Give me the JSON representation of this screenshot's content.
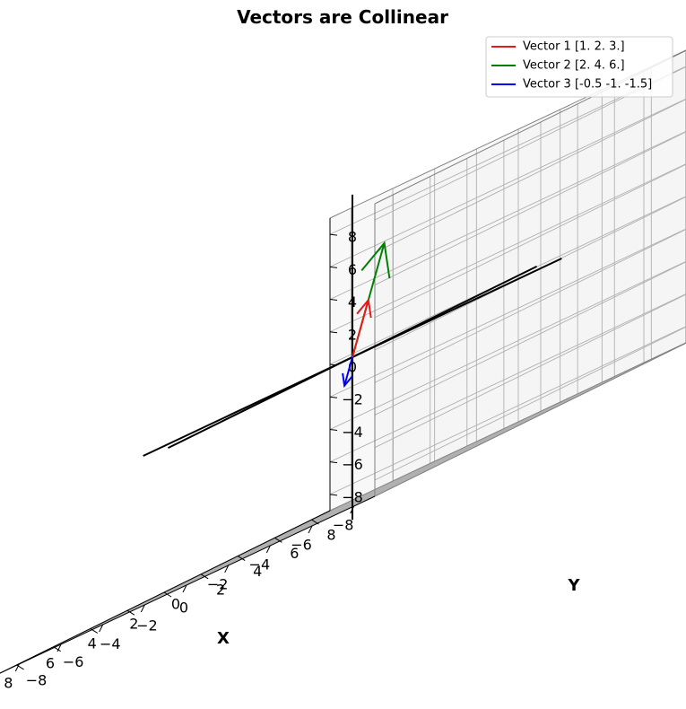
{
  "chart_data": {
    "type": "line",
    "projection": "3d",
    "title": "Vectors are Collinear",
    "xlabel": "X",
    "ylabel": "Y",
    "zlabel": "",
    "xlim": [
      -9,
      9
    ],
    "ylim": [
      -9,
      9
    ],
    "zlim": [
      -9,
      9
    ],
    "xticks": [
      -8,
      -6,
      -4,
      -2,
      0,
      2,
      4,
      6,
      8
    ],
    "yticks": [
      -8,
      -6,
      -4,
      -2,
      0,
      2,
      4,
      6,
      8
    ],
    "zticks": [
      -8,
      -6,
      -4,
      -2,
      0,
      2,
      4,
      6,
      8
    ],
    "xtick_labels": [
      "−8",
      "−6",
      "−4",
      "−2",
      "0",
      "2",
      "4",
      "6",
      "8"
    ],
    "ytick_labels": [
      "−8",
      "−6",
      "−4",
      "−2",
      "0",
      "2",
      "4",
      "6",
      "8"
    ],
    "ztick_labels": [
      "−8",
      "−6",
      "−4",
      "−2",
      "0",
      "2",
      "4",
      "6",
      "8"
    ],
    "grid": true,
    "legend_position": "top-right",
    "series": [
      {
        "name": "Vector 1 [1. 2. 3.]",
        "color": "#e41a1c",
        "start": [
          0,
          0,
          0
        ],
        "end": [
          1,
          2,
          3
        ]
      },
      {
        "name": "Vector 2 [2. 4. 6.]",
        "color": "#008000",
        "start": [
          0,
          0,
          0
        ],
        "end": [
          2,
          4,
          6
        ]
      },
      {
        "name": "Vector 3 [-0.5 -1.  -1.5]",
        "color": "#0000ff",
        "start": [
          0,
          0,
          0
        ],
        "end": [
          -0.5,
          -1,
          -1.5
        ]
      }
    ],
    "reference_axes": {
      "color": "#000000",
      "x": [
        -10,
        10
      ],
      "y": [
        -10,
        10
      ],
      "z": [
        -10,
        10
      ]
    }
  }
}
